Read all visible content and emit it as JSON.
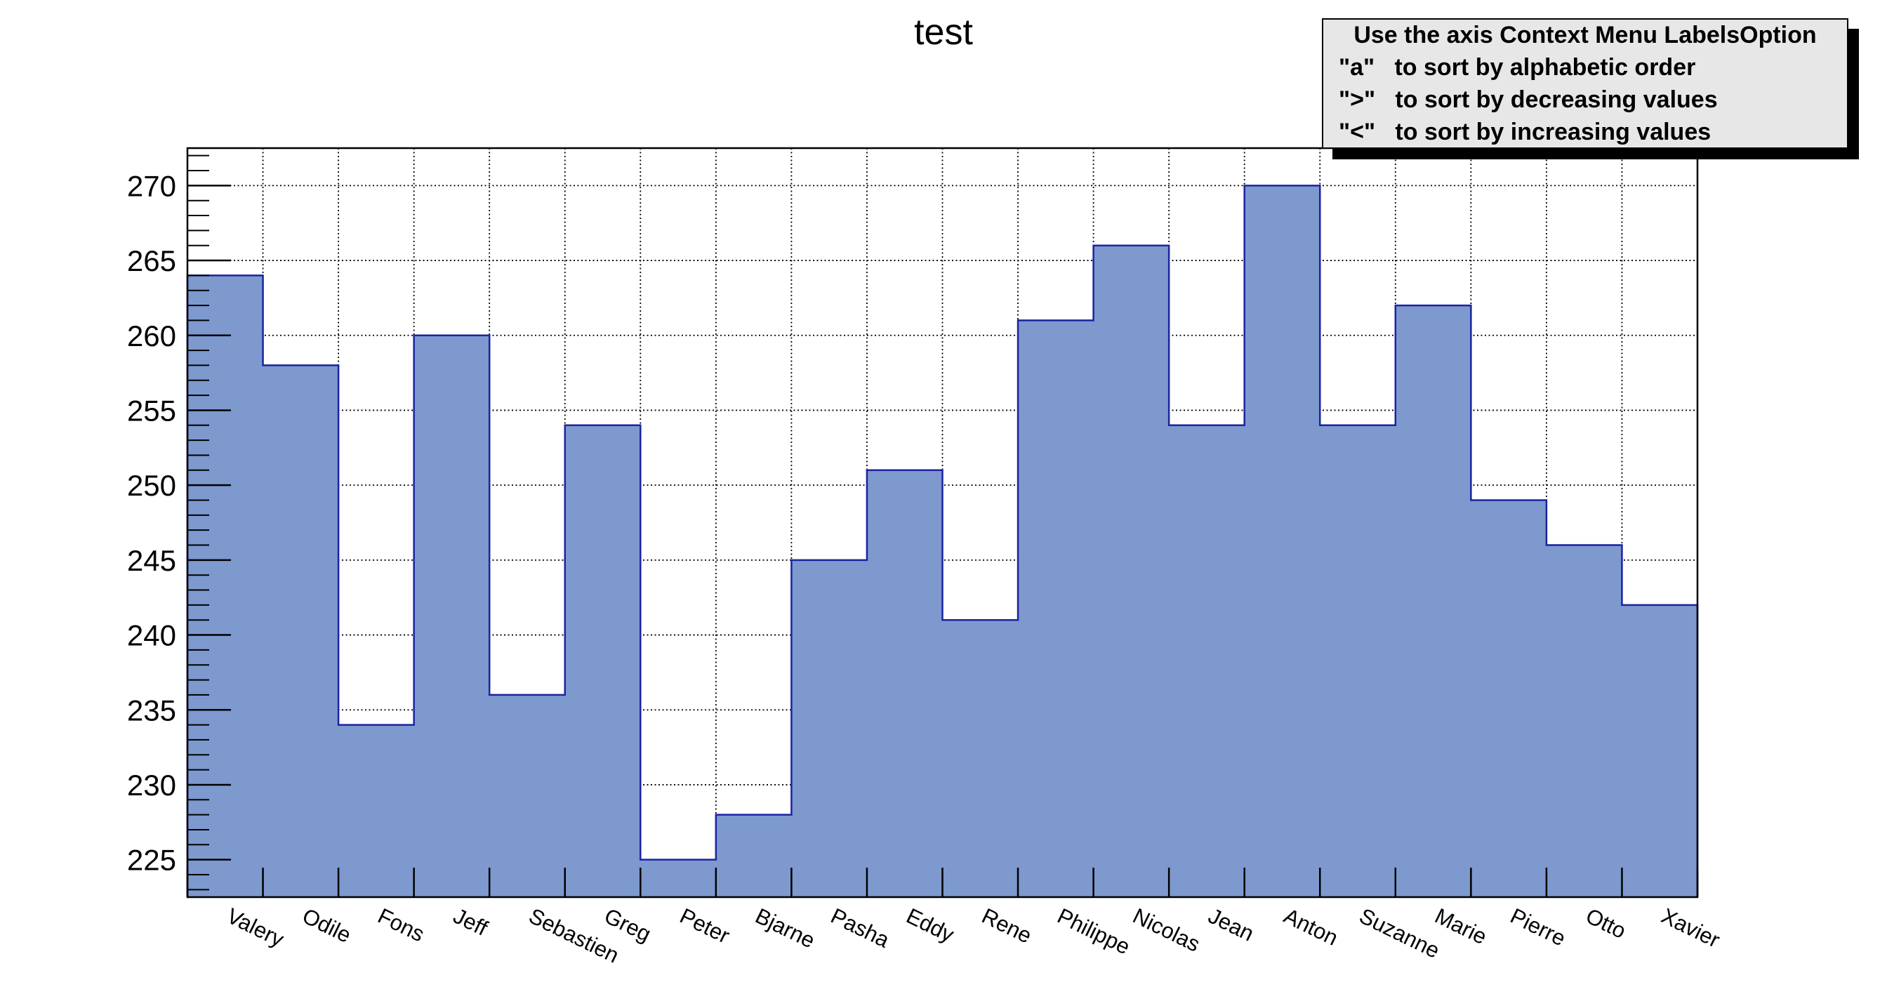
{
  "title": "test",
  "info_box": {
    "title": "Use the axis Context Menu LabelsOption",
    "lines": [
      "\"a\"   to sort by alphabetic order",
      "\">\"   to sort by decreasing values",
      "\"<\"   to sort by increasing values"
    ],
    "background": "#e7e7e7",
    "border_color": "#000000",
    "shadow_color": "#000000"
  },
  "chart_data": {
    "type": "bar",
    "title": "test",
    "categories": [
      "Valery",
      "Odile",
      "Fons",
      "Jeff",
      "Sebastien",
      "Greg",
      "Peter",
      "Bjarne",
      "Pasha",
      "Eddy",
      "Rene",
      "Philippe",
      "Nicolas",
      "Jean",
      "Anton",
      "Suzanne",
      "Marie",
      "Pierre",
      "Otto",
      "Xavier"
    ],
    "values": [
      264,
      258,
      234,
      260,
      236,
      254,
      225,
      228,
      245,
      251,
      241,
      261,
      266,
      254,
      270,
      254,
      262,
      249,
      246,
      242
    ],
    "xlabel": "",
    "ylabel": "",
    "ylim": [
      222.5,
      272.5
    ],
    "ytick_major": [
      225,
      230,
      235,
      240,
      245,
      250,
      255,
      260,
      265,
      270
    ],
    "ytick_minor_step": 1,
    "grid": true,
    "legend_position": "none",
    "bar_fill": "#7d99ce",
    "bar_line": "#1b23a0",
    "axis_color": "#000000",
    "grid_color": "#000000",
    "label_rotation_deg": 26
  }
}
